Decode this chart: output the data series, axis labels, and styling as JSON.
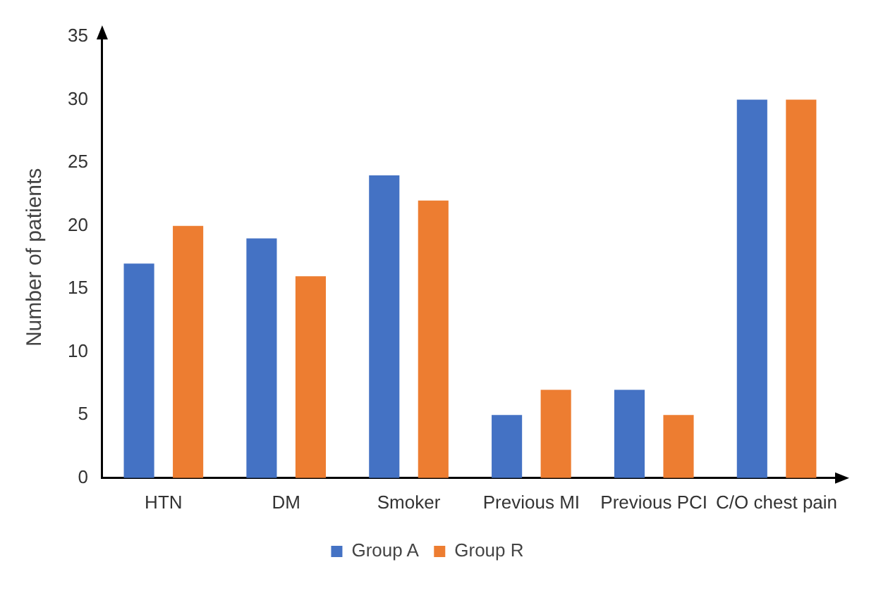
{
  "chart_data": {
    "type": "bar",
    "ylabel": "Number of patients",
    "categories": [
      "HTN",
      "DM",
      "Smoker",
      "Previous MI",
      "Previous PCI",
      "C/O chest pain"
    ],
    "series": [
      {
        "name": "Group A",
        "color": "#4472c4",
        "values": [
          17,
          19,
          24,
          5,
          7,
          30
        ]
      },
      {
        "name": "Group R",
        "color": "#ed7d31",
        "values": [
          20,
          16,
          22,
          7,
          5,
          30
        ]
      }
    ],
    "ylim": [
      0,
      35
    ],
    "yticks": [
      0,
      5,
      10,
      15,
      20,
      25,
      30,
      35
    ],
    "grid": false,
    "legend": "bottom"
  }
}
